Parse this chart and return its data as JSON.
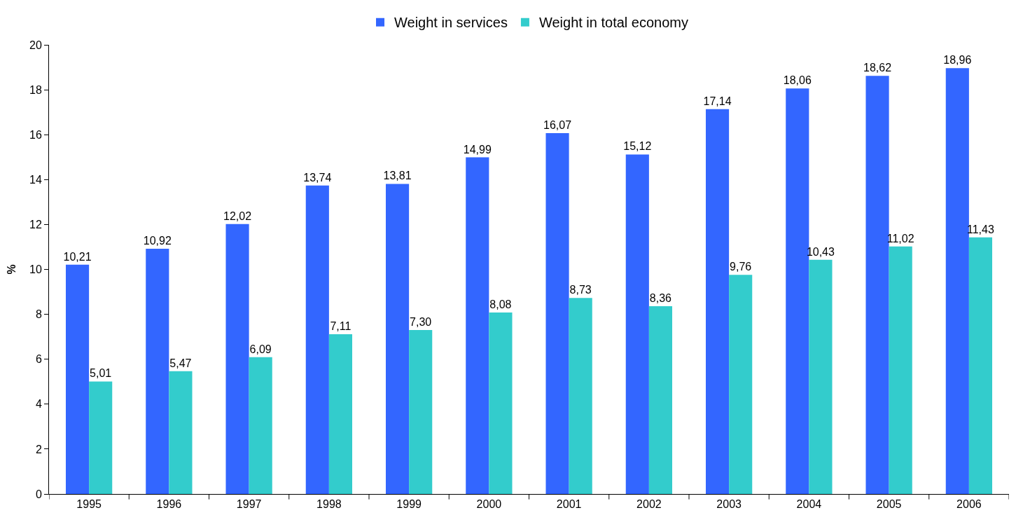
{
  "chart_data": {
    "type": "bar",
    "ylabel": "%",
    "categories": [
      "1995",
      "1996",
      "1997",
      "1998",
      "1999",
      "2000",
      "2001",
      "2002",
      "2003",
      "2004",
      "2005",
      "2006"
    ],
    "series": [
      {
        "name": "Weight in services",
        "color": "#3366ff",
        "values": [
          10.21,
          10.92,
          12.02,
          13.74,
          13.81,
          14.99,
          16.07,
          15.12,
          17.14,
          18.06,
          18.62,
          18.96
        ],
        "value_labels": [
          "10,21",
          "10,92",
          "12,02",
          "13,74",
          "13,81",
          "14,99",
          "16,07",
          "15,12",
          "17,14",
          "18,06",
          "18,62",
          "18,96"
        ]
      },
      {
        "name": "Weight in total economy",
        "color": "#33cccc",
        "values": [
          5.01,
          5.47,
          6.09,
          7.11,
          7.3,
          8.08,
          8.73,
          8.36,
          9.76,
          10.43,
          11.02,
          11.43
        ],
        "value_labels": [
          "5,01",
          "5,47",
          "6,09",
          "7,11",
          "7,30",
          "8,08",
          "8,73",
          "8,36",
          "9,76",
          "10,43",
          "11,02",
          "11,43"
        ]
      }
    ],
    "ylim": [
      0,
      20
    ],
    "yticks": [
      0,
      2,
      4,
      6,
      8,
      10,
      12,
      14,
      16,
      18,
      20
    ],
    "legend": "top"
  }
}
